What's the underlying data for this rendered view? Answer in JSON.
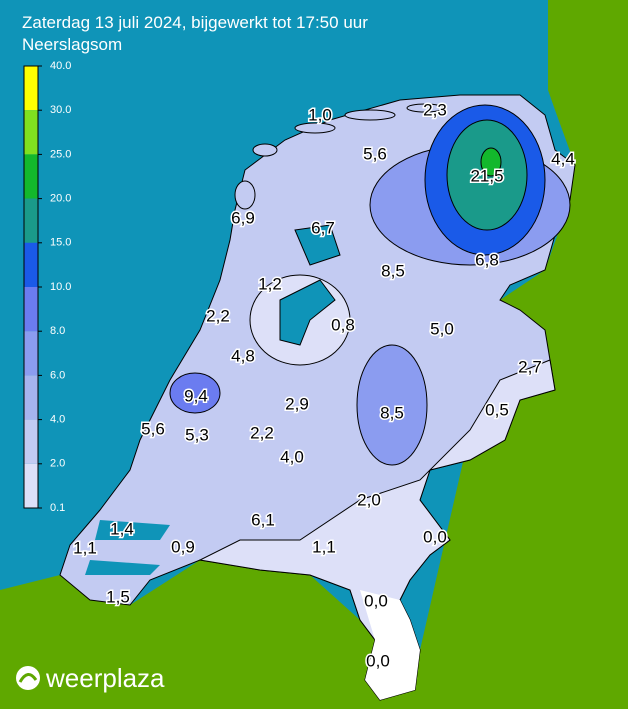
{
  "header": {
    "title": "Zaterdag 13 juli 2024, bijgewerkt tot 17:50 uur",
    "subtitle": "Neerslagsom"
  },
  "legend": {
    "ticks": [
      "40.0",
      "30.0",
      "25.0",
      "20.0",
      "15.0",
      "10.0",
      "8.0",
      "6.0",
      "4.0",
      "2.0",
      "0.1"
    ]
  },
  "map": {
    "labels": [
      "1,0",
      "2,3",
      "5,6",
      "21,5",
      "4,4",
      "6,9",
      "6,7",
      "8,5",
      "6,8",
      "1,2",
      "2,2",
      "0,8",
      "5,0",
      "4,8",
      "2,7",
      "9,4",
      "2,9",
      "8,5",
      "0,5",
      "5,6",
      "5,3",
      "2,2",
      "4,0",
      "2,0",
      "6,1",
      "1,4",
      "0,0",
      "1,1",
      "0,9",
      "1,1",
      "1,5",
      "0,0",
      "0,0"
    ]
  },
  "logo": {
    "text": "weerplaza"
  }
}
